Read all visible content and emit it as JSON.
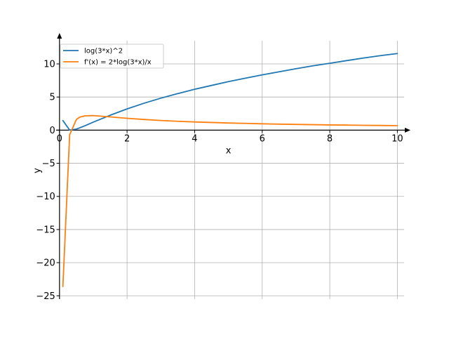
{
  "chart_data": {
    "type": "line",
    "xlabel": "x",
    "ylabel": "y",
    "xlim": [
      -0.1,
      10.2
    ],
    "ylim": [
      -25.5,
      13.5
    ],
    "grid": true,
    "legend_position": "top-left",
    "x_ticks": [
      {
        "value": 0,
        "label": "0"
      },
      {
        "value": 2,
        "label": "2"
      },
      {
        "value": 4,
        "label": "4"
      },
      {
        "value": 6,
        "label": "6"
      },
      {
        "value": 8,
        "label": "8"
      },
      {
        "value": 10,
        "label": "10"
      }
    ],
    "y_ticks": [
      {
        "value": -25,
        "label": "−25"
      },
      {
        "value": -20,
        "label": "−20"
      },
      {
        "value": -15,
        "label": "−15"
      },
      {
        "value": -10,
        "label": "−10"
      },
      {
        "value": -5,
        "label": "−5"
      },
      {
        "value": 0,
        "label": "0"
      },
      {
        "value": 5,
        "label": "5"
      },
      {
        "value": 10,
        "label": "10"
      }
    ],
    "series": [
      {
        "name": "log(3*x)^2",
        "color": "#1f77b4",
        "x": [
          0.1,
          0.3,
          0.5,
          0.75,
          1.0,
          1.5,
          2.0,
          2.5,
          3.0,
          3.5,
          4.0,
          4.5,
          5.0,
          5.5,
          6.0,
          6.5,
          7.0,
          7.5,
          8.0,
          8.5,
          9.0,
          9.5,
          10.0
        ],
        "values": [
          1.45,
          0.01,
          0.16,
          0.66,
          1.21,
          2.25,
          3.21,
          4.06,
          4.83,
          5.52,
          6.17,
          6.75,
          7.33,
          7.84,
          8.35,
          8.81,
          9.27,
          9.71,
          10.1,
          10.5,
          10.89,
          11.25,
          11.57
        ]
      },
      {
        "name": "f'(x) = 2*log(3*x)/x",
        "color": "#ff7f0e",
        "x": [
          0.1,
          0.3,
          0.5,
          0.6,
          0.75,
          1.0,
          1.5,
          2.0,
          2.5,
          3.0,
          3.5,
          4.0,
          4.5,
          5.0,
          5.5,
          6.0,
          6.5,
          7.0,
          7.5,
          8.0,
          8.5,
          9.0,
          9.5,
          10.0
        ],
        "values": [
          -23.6,
          -0.7,
          1.62,
          1.96,
          2.16,
          2.2,
          2.0,
          1.79,
          1.61,
          1.46,
          1.34,
          1.24,
          1.16,
          1.08,
          1.02,
          0.96,
          0.91,
          0.87,
          0.83,
          0.79,
          0.76,
          0.73,
          0.71,
          0.68
        ]
      }
    ]
  }
}
